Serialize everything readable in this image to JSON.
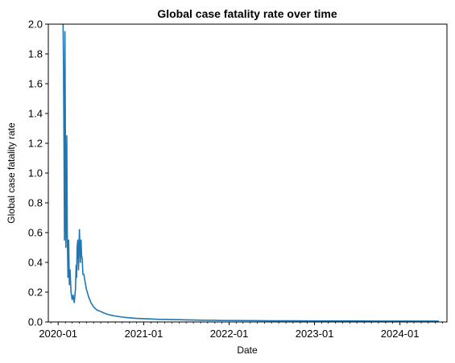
{
  "chart_data": {
    "type": "line",
    "title": "Global case fatality rate over time",
    "xlabel": "Date",
    "ylabel": "Global case fatality rate",
    "x_axis": "date",
    "xlim": [
      "2019-11-20",
      "2024-07-20"
    ],
    "ylim": [
      0,
      2.0
    ],
    "grid": false,
    "legend": "none",
    "x_ticks": [
      "2020-01",
      "2021-01",
      "2022-01",
      "2023-01",
      "2024-01"
    ],
    "y_ticks": [
      "0.0",
      "0.2",
      "0.4",
      "0.6",
      "0.8",
      "1.0",
      "1.2",
      "1.4",
      "1.6",
      "1.8",
      "2.0"
    ],
    "line_color": "#1f77b4",
    "series": [
      {
        "x": [
          "2020-01-22",
          "2020-01-24",
          "2020-01-26",
          "2020-01-28",
          "2020-01-30",
          "2020-02-01",
          "2020-02-03",
          "2020-02-05",
          "2020-02-07",
          "2020-02-09",
          "2020-02-12",
          "2020-02-15",
          "2020-02-18",
          "2020-02-21",
          "2020-02-25",
          "2020-03-01",
          "2020-03-05",
          "2020-03-10",
          "2020-03-15",
          "2020-03-18",
          "2020-03-20",
          "2020-03-22",
          "2020-03-25",
          "2020-03-28",
          "2020-04-01",
          "2020-04-05",
          "2020-04-08",
          "2020-04-10",
          "2020-04-13",
          "2020-04-16",
          "2020-04-20",
          "2020-04-25",
          "2020-05-01",
          "2020-05-10",
          "2020-05-20",
          "2020-06-01",
          "2020-06-15",
          "2020-07-01",
          "2020-07-15",
          "2020-08-01",
          "2020-08-15",
          "2020-09-01",
          "2020-09-15",
          "2020-10-01",
          "2020-10-15",
          "2020-11-01",
          "2020-11-15",
          "2020-12-01",
          "2021-01-01",
          "2021-02-01",
          "2021-03-01",
          "2021-04-01",
          "2021-05-01",
          "2021-06-01",
          "2021-07-01",
          "2021-08-01",
          "2021-09-01",
          "2021-10-01",
          "2021-11-01",
          "2021-12-01",
          "2022-01-01",
          "2022-04-01",
          "2022-07-01",
          "2022-10-01",
          "2023-01-01",
          "2023-04-01",
          "2023-07-01",
          "2023-10-01",
          "2024-01-01",
          "2024-04-01",
          "2024-06-15"
        ],
        "y": [
          2.0,
          1.7,
          1.2,
          0.55,
          1.95,
          1.25,
          0.5,
          0.75,
          1.25,
          0.6,
          0.3,
          0.55,
          0.25,
          0.35,
          0.2,
          0.15,
          0.18,
          0.13,
          0.22,
          0.38,
          0.3,
          0.5,
          0.55,
          0.35,
          0.62,
          0.4,
          0.55,
          0.45,
          0.42,
          0.32,
          0.32,
          0.27,
          0.22,
          0.17,
          0.13,
          0.1,
          0.08,
          0.07,
          0.06,
          0.05,
          0.045,
          0.04,
          0.036,
          0.033,
          0.03,
          0.028,
          0.026,
          0.024,
          0.022,
          0.02,
          0.018,
          0.017,
          0.016,
          0.015,
          0.014,
          0.013,
          0.012,
          0.011,
          0.011,
          0.01,
          0.01,
          0.009,
          0.008,
          0.008,
          0.007,
          0.007,
          0.007,
          0.006,
          0.006,
          0.006,
          0.006
        ]
      }
    ]
  }
}
